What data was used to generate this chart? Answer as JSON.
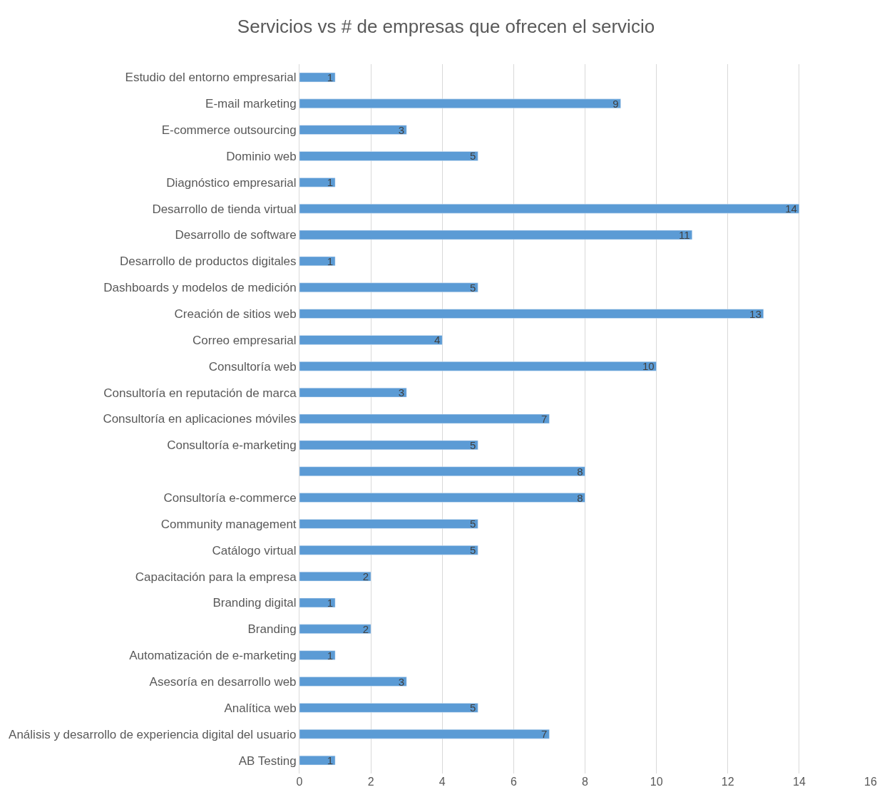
{
  "chart_data": {
    "type": "bar",
    "orientation": "horizontal",
    "title": "Servicios vs # de empresas que ofrecen el servicio",
    "categories": [
      "Estudio del entorno empresarial",
      "E-mail marketing",
      "E-commerce outsourcing",
      "Dominio web",
      "Diagnóstico empresarial",
      "Desarrollo de tienda virtual",
      "Desarrollo de software",
      "Desarrollo de productos digitales",
      "Dashboards y modelos de medición",
      "Creación de sitios web",
      "Correo empresarial",
      "Consultoría web",
      "Consultoría en reputación de marca",
      "Consultoría en aplicaciones móviles",
      "Consultoría e-marketing",
      null,
      "Consultoría e-commerce",
      "Community management",
      "Catálogo virtual",
      "Capacitación para la empresa",
      "Branding digital",
      "Branding",
      "Automatización de e-marketing",
      "Asesoría en desarrollo web",
      "Analítica web",
      "Análisis y desarrollo de experiencia digital del usuario",
      "AB Testing"
    ],
    "values": [
      1,
      9,
      3,
      5,
      1,
      14,
      11,
      1,
      5,
      13,
      4,
      10,
      3,
      7,
      5,
      8,
      8,
      5,
      5,
      2,
      1,
      2,
      1,
      3,
      5,
      7,
      1
    ],
    "color": "#5b9bd5",
    "data_labels": true,
    "xlim": [
      0,
      16
    ],
    "xticks": [
      0,
      2,
      4,
      6,
      8,
      10,
      12,
      14,
      16
    ],
    "grid": "x",
    "legend": false
  }
}
